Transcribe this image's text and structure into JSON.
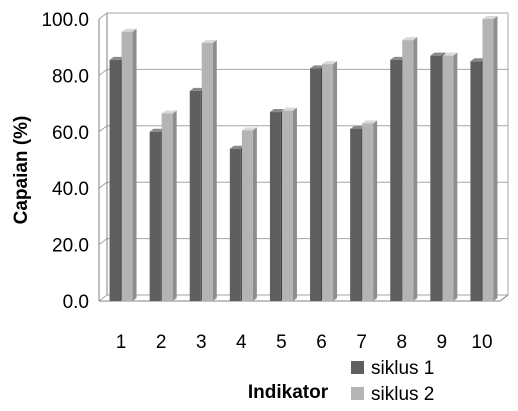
{
  "chart_data": {
    "type": "bar",
    "categories": [
      "1",
      "2",
      "3",
      "4",
      "5",
      "6",
      "7",
      "8",
      "9",
      "10"
    ],
    "series": [
      {
        "name": "siklus 1",
        "values": [
          85.5,
          60.0,
          74.5,
          54.0,
          67.0,
          82.5,
          61.0,
          85.5,
          87.0,
          85.0
        ]
      },
      {
        "name": "siklus 2",
        "values": [
          95.5,
          66.5,
          91.5,
          60.5,
          67.5,
          84.0,
          63.0,
          92.5,
          87.0,
          100.0
        ]
      }
    ],
    "title": "",
    "xlabel": "Indikator",
    "ylabel": "Capaian (%)",
    "ylim": [
      0,
      100
    ],
    "yticks": [
      "0.0",
      "20.0",
      "40.0",
      "60.0",
      "80.0",
      "100.0"
    ],
    "grid": true,
    "legend": "bottom-right",
    "colors": {
      "series1_front": "#5f5f5f",
      "series1_side": "#3a3a3a",
      "series1_top": "#8a8a8a",
      "series2_front": "#b4b4b4",
      "series2_side": "#8e8e8e",
      "series2_top": "#d9d9d9",
      "grid": "#a6a6a6",
      "axis": "#808080"
    }
  }
}
